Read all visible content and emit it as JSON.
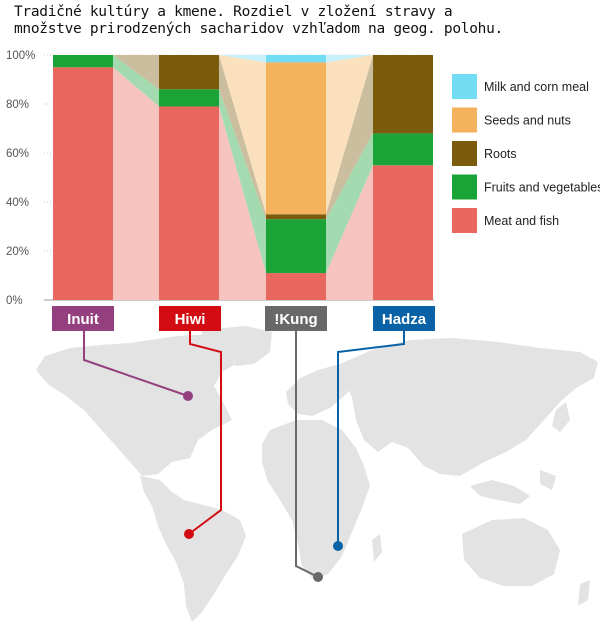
{
  "title": "Tradičné kultúry a kmene. Rozdiel v zložení stravy a\nmnožstve prirodzených sacharidov vzhľadom na geog. polohu.",
  "chart_data": {
    "type": "bar",
    "stacked": true,
    "categories": [
      "Inuit",
      "Hiwi",
      "!Kung",
      "Hadza"
    ],
    "series": [
      {
        "name": "Meat and fish",
        "color": "#e8685f",
        "values": [
          95,
          79,
          11,
          55
        ]
      },
      {
        "name": "Fruits and vegetables",
        "color": "#1aa336",
        "values": [
          5,
          7,
          22,
          13
        ]
      },
      {
        "name": "Roots",
        "color": "#7b5c0d",
        "values": [
          0,
          14,
          2,
          32
        ]
      },
      {
        "name": "Seeds and nuts",
        "color": "#f3b25b",
        "values": [
          0,
          0,
          62,
          0
        ]
      },
      {
        "name": "Milk and corn meal",
        "color": "#72dcf2",
        "values": [
          0,
          0,
          3,
          0
        ]
      }
    ],
    "yticks": [
      "0%",
      "20%",
      "40%",
      "60%",
      "80%",
      "100%"
    ],
    "ylim": [
      0,
      100
    ],
    "legend_position": "right",
    "label_colors": [
      "#94407f",
      "#d20c12",
      "#686868",
      "#0a62a6"
    ]
  }
}
